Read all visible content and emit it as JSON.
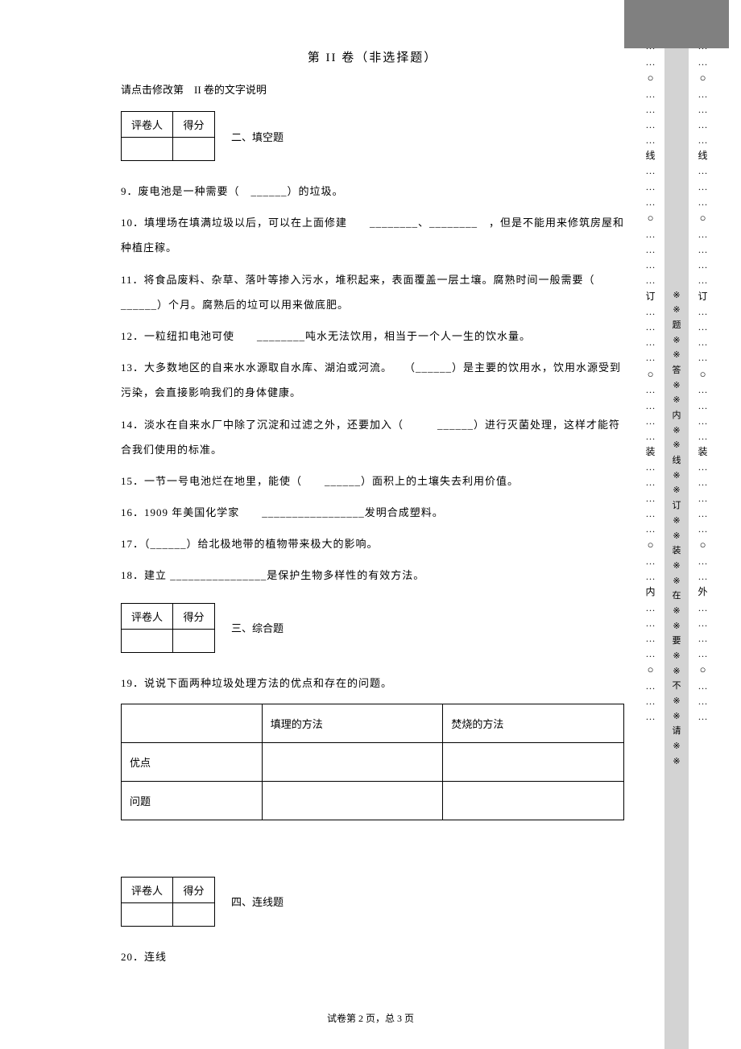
{
  "section_title": "第 II 卷（非选择题）",
  "instruction": "请点击修改第　II 卷的文字说明",
  "grader": {
    "col1": "评卷人",
    "col2": "得分"
  },
  "subsection2": "二、填空题",
  "subsection3": "三、综合题",
  "subsection4": "四、连线题",
  "q9": "9．废电池是一种需要（　______）的垃圾。",
  "q10": "10．填埋场在填满垃圾以后，可以在上面修建　　________、________　，但是不能用来修筑房屋和种植庄稼。",
  "q11": "11．将食品废料、杂草、落叶等掺入污水，堆积起来，表面覆盖一层土壤。腐熟时间一般需要（　______）个月。腐熟后的垃可以用来做底肥。",
  "q12": "12．一粒纽扣电池可使　　________吨水无法饮用，相当于一个人一生的饮水量。",
  "q13": "13．大多数地区的自来水水源取自水库、湖泊或河流。　　（______）是主要的饮用水，饮用水源受到污染，会直接影响我们的身体健康。",
  "q14": "14．淡水在自来水厂中除了沉淀和过滤之外，还要加入（　　　______）进行灭菌处理，这样才能符合我们使用的标准。",
  "q15": "15．一节一号电池烂在地里，能使（　　______）面积上的土壤失去利用价值。",
  "q16": "16．1909 年美国化学家　　_________________发明合成塑料。",
  "q17": "17．（______）给北极地带的植物带来极大的影响。",
  "q18": "18．建立 ________________是保护生物多样性的有效方法。",
  "q19": "19．说说下面两种垃圾处理方法的优点和存在的问题。",
  "q20": "20．连线",
  "table19": {
    "h1": "",
    "h2": "填理的方法",
    "h3": "焚烧的方法",
    "r1": "优点",
    "r2": "问题"
  },
  "footer": "试卷第 2 页，总 3 页",
  "margin": {
    "dots": "…",
    "circle": "○",
    "xian": "线",
    "ding": "订",
    "zhuang": "装",
    "nei": "内",
    "wai": "外",
    "vertical_text": "※※题※※答※※内※※线※※订※※装※※在※※要※※不※※请※※",
    "star": "※"
  }
}
